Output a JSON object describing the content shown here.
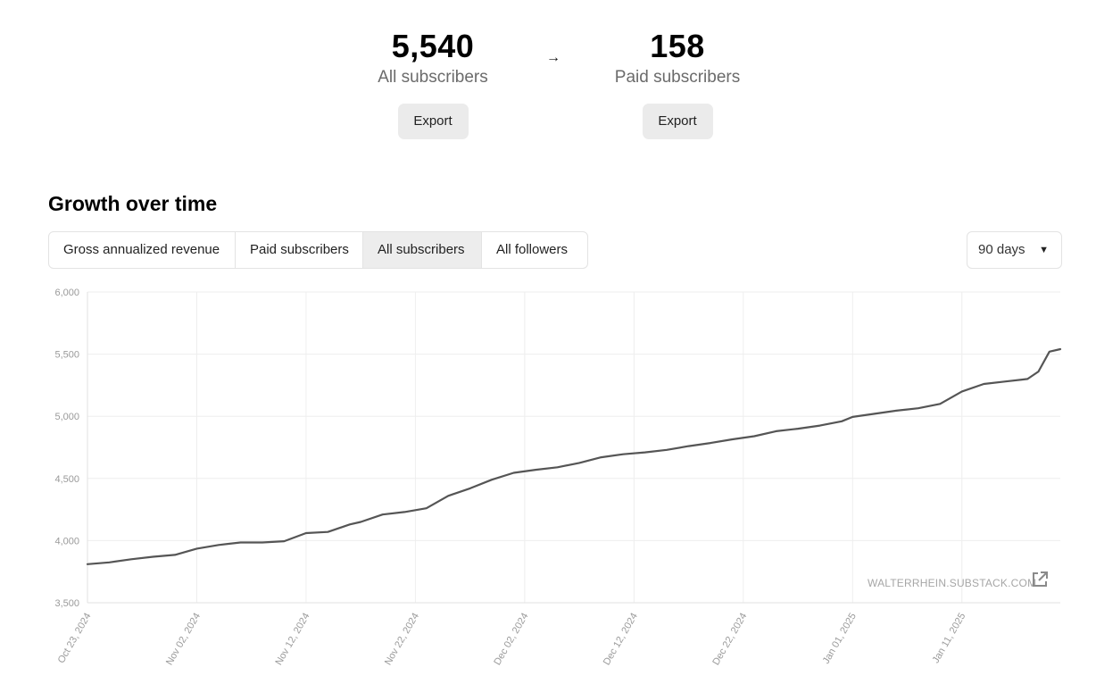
{
  "stats": {
    "all": {
      "value": "5,540",
      "label": "All subscribers",
      "export_label": "Export"
    },
    "arrow": "→",
    "paid": {
      "value": "158",
      "label": "Paid subscribers",
      "export_label": "Export"
    }
  },
  "growth": {
    "title": "Growth over time",
    "tabs": [
      "Gross annualized revenue",
      "Paid subscribers",
      "All subscribers",
      "All followers"
    ],
    "active_tab": "All subscribers",
    "range": {
      "selected": "90 days",
      "caret": "▼"
    },
    "watermark": "WALTERRHEIN.SUBSTACK.COM",
    "icons": {
      "external_link": "external-link-icon",
      "caret": "caret-down-icon"
    },
    "colors": {
      "line": "#555555",
      "grid": "#eeeeee",
      "axis_label": "#9a9a9a",
      "active_tab_bg": "#ededed"
    }
  },
  "chart_data": {
    "type": "line",
    "title": "",
    "xlabel": "",
    "ylabel": "",
    "x_range": [
      "2024-10-23",
      "2025-01-20"
    ],
    "ylim": [
      3500,
      6000
    ],
    "grid": true,
    "yticks": [
      3500,
      4000,
      4500,
      5000,
      5500,
      6000
    ],
    "ytick_labels": [
      "3,500",
      "4,000",
      "4,500",
      "5,000",
      "5,500",
      "6,000"
    ],
    "xticks": [
      "2024-10-23",
      "2024-11-02",
      "2024-11-12",
      "2024-11-22",
      "2024-12-02",
      "2024-12-12",
      "2024-12-22",
      "2025-01-01",
      "2025-01-11"
    ],
    "xtick_labels": [
      "Oct 23, 2024",
      "Nov 02, 2024",
      "Nov 12, 2024",
      "Nov 22, 2024",
      "Dec 02, 2024",
      "Dec 12, 2024",
      "Dec 22, 2024",
      "Jan 01, 2025",
      "Jan 11, 2025"
    ],
    "series": [
      {
        "x": [
          "2024-10-23",
          "2024-10-25",
          "2024-10-27",
          "2024-10-29",
          "2024-10-31",
          "2024-11-02",
          "2024-11-04",
          "2024-11-06",
          "2024-11-08",
          "2024-11-10",
          "2024-11-12",
          "2024-11-14",
          "2024-11-16",
          "2024-11-17",
          "2024-11-19",
          "2024-11-21",
          "2024-11-23",
          "2024-11-25",
          "2024-11-27",
          "2024-11-29",
          "2024-12-01",
          "2024-12-03",
          "2024-12-05",
          "2024-12-07",
          "2024-12-09",
          "2024-12-11",
          "2024-12-13",
          "2024-12-15",
          "2024-12-17",
          "2024-12-19",
          "2024-12-21",
          "2024-12-23",
          "2024-12-25",
          "2024-12-27",
          "2024-12-29",
          "2024-12-31",
          "2025-01-01",
          "2025-01-03",
          "2025-01-05",
          "2025-01-07",
          "2025-01-09",
          "2025-01-11",
          "2025-01-13",
          "2025-01-15",
          "2025-01-17",
          "2025-01-18",
          "2025-01-19",
          "2025-01-20"
        ],
        "values": [
          3810,
          3825,
          3850,
          3870,
          3885,
          3935,
          3965,
          3985,
          3985,
          3995,
          4060,
          4070,
          4130,
          4150,
          4210,
          4230,
          4260,
          4360,
          4420,
          4490,
          4545,
          4570,
          4590,
          4625,
          4670,
          4695,
          4710,
          4730,
          4760,
          4785,
          4815,
          4840,
          4880,
          4900,
          4925,
          4960,
          4995,
          5020,
          5045,
          5065,
          5100,
          5200,
          5260,
          5280,
          5300,
          5360,
          5520,
          5540
        ]
      }
    ]
  }
}
